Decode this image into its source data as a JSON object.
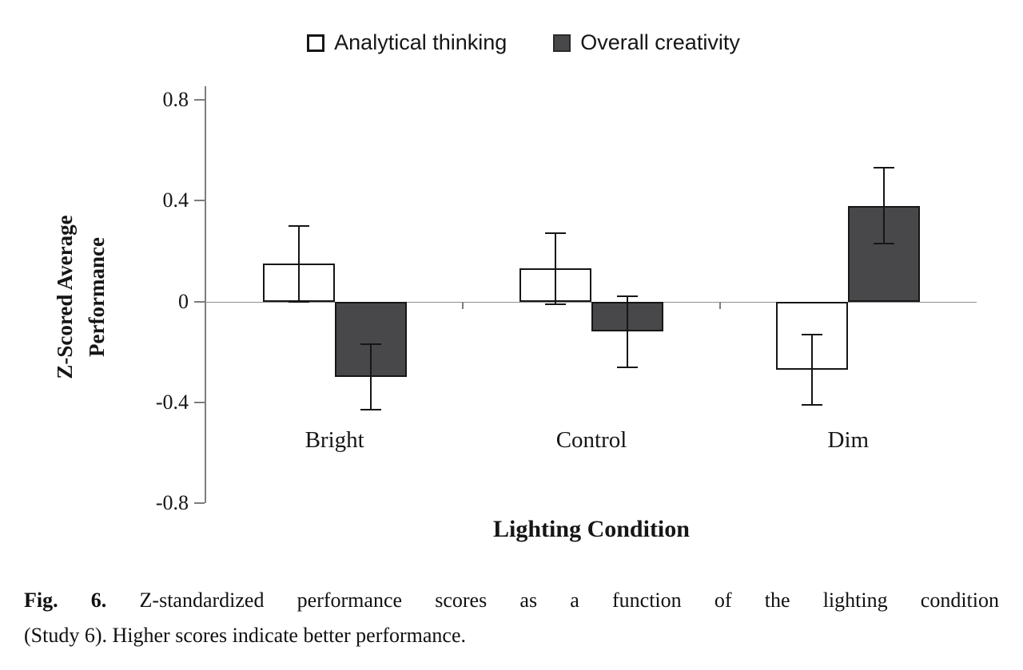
{
  "figure": {
    "caption": {
      "label": "Fig. 6.",
      "line1": "Z-standardized performance scores as a function of the lighting condition",
      "line2": "(Study 6). Higher scores indicate better performance."
    }
  },
  "chart_data": {
    "type": "bar",
    "title": "",
    "categories": [
      "Bright",
      "Control",
      "Dim"
    ],
    "series": [
      {
        "name": "Analytical thinking",
        "fill": "#ffffff",
        "values": [
          0.15,
          0.13,
          -0.27
        ],
        "errors": [
          0.15,
          0.14,
          0.14
        ]
      },
      {
        "name": "Overall creativity",
        "fill": "#48484b",
        "values": [
          -0.3,
          -0.12,
          0.38
        ],
        "errors": [
          0.13,
          0.14,
          0.15
        ]
      }
    ],
    "xlabel": "Lighting Condition",
    "ylabel": "Z-Scored Average Performance",
    "ylim": [
      -0.8,
      0.8
    ],
    "yticks": [
      0.8,
      0.4,
      0,
      -0.4,
      -0.8
    ],
    "ytick_labels": [
      "0.8",
      "0.4",
      "0",
      "-0.4",
      "-0.8"
    ],
    "grid": false,
    "legend_position": "top",
    "error_bars": true,
    "colors": {
      "analytical": "#ffffff",
      "creativity": "#48484b",
      "bar_outline": "#161616",
      "axis": "#7d7d7d"
    }
  }
}
